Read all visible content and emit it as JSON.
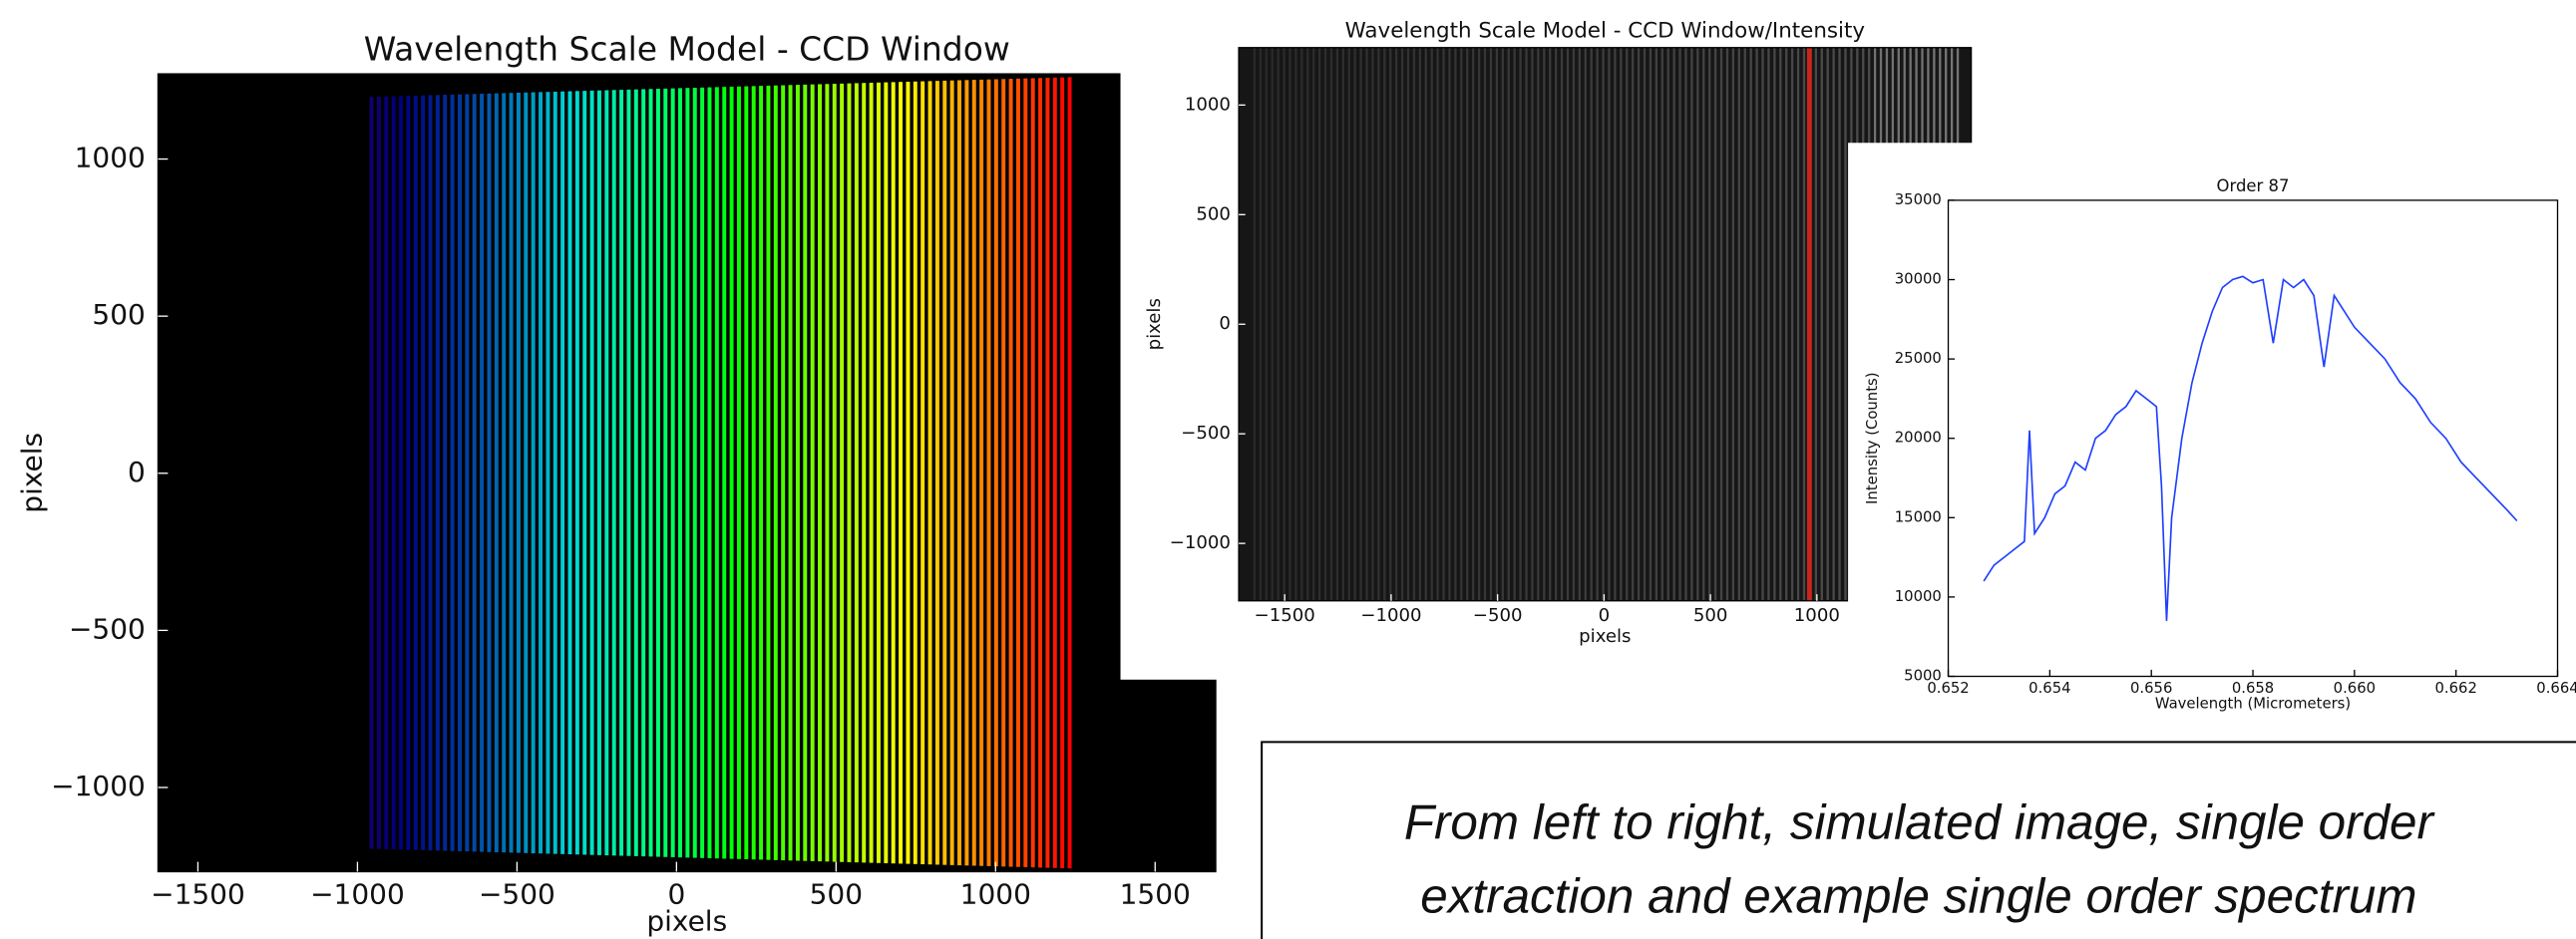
{
  "chart_data": [
    {
      "type": "image",
      "title": "Wavelength Scale Model - CCD Window",
      "x_label": "pixels",
      "y_label": "pixels",
      "colormap": "rainbow",
      "background": "#000000",
      "xlim": [
        -1625,
        1690
      ],
      "ylim": [
        -1268,
        1271
      ],
      "xticks": [
        {
          "value": -1500,
          "label": "−1500"
        },
        {
          "value": -1000,
          "label": "−1000"
        },
        {
          "value": -500,
          "label": "−500"
        },
        0,
        500,
        1000,
        1500
      ],
      "yticks": [
        {
          "value": -1000,
          "label": "−1000"
        },
        {
          "value": -500,
          "label": "−500"
        },
        0,
        500,
        1000
      ]
    },
    {
      "type": "image",
      "title": "Wavelength Scale Model - CCD Window/Intensity",
      "x_label": "pixels",
      "y_label": "pixels",
      "colormap": "gray",
      "background": "#161616",
      "highlight": {
        "x": 965,
        "color": "#c8261c"
      },
      "xlim": [
        -1716,
        1725
      ],
      "ylim": [
        -1262,
        1262
      ],
      "xticks": [
        {
          "value": -1500,
          "label": "−1500"
        },
        {
          "value": -1000,
          "label": "−1000"
        },
        {
          "value": -500,
          "label": "−500"
        },
        0,
        500,
        1000
      ],
      "yticks": [
        {
          "value": -1000,
          "label": "−1000"
        },
        {
          "value": -500,
          "label": "−500"
        },
        0,
        500,
        1000
      ]
    },
    {
      "type": "line",
      "title": "Order 87",
      "x_label": "Wavelength (Micrometers)",
      "y_label": "Intensity (Counts)",
      "xlim": [
        0.652,
        0.664
      ],
      "ylim": [
        5000,
        35000
      ],
      "xticks": [
        0.652,
        0.654,
        0.656,
        0.658,
        {
          "value": 0.66,
          "label": "0.660"
        },
        0.662,
        0.664
      ],
      "yticks": [
        5000,
        10000,
        15000,
        20000,
        25000,
        30000,
        35000
      ],
      "x": [
        0.6527,
        0.6529,
        0.6531,
        0.6533,
        0.6535,
        0.6536,
        0.6537,
        0.6539,
        0.6541,
        0.6543,
        0.6545,
        0.6547,
        0.6549,
        0.6551,
        0.6553,
        0.6555,
        0.6557,
        0.6559,
        0.6561,
        0.6562,
        0.6563,
        0.6564,
        0.6566,
        0.6568,
        0.657,
        0.6572,
        0.6574,
        0.6576,
        0.6578,
        0.658,
        0.6582,
        0.6584,
        0.6586,
        0.6588,
        0.659,
        0.6592,
        0.6594,
        0.6596,
        0.6598,
        0.66,
        0.6603,
        0.6606,
        0.6609,
        0.6612,
        0.6615,
        0.6618,
        0.6621,
        0.6624,
        0.6627,
        0.663,
        0.6632
      ],
      "series": [
        {
          "color": "#1f3fff",
          "values": [
            11000,
            12000,
            12500,
            13000,
            13500,
            20500,
            14000,
            15000,
            16500,
            17000,
            18500,
            18000,
            20000,
            20500,
            21500,
            22000,
            23000,
            22500,
            22000,
            17000,
            8500,
            15000,
            20000,
            23500,
            26000,
            28000,
            29500,
            30000,
            30200,
            29800,
            30000,
            26000,
            30000,
            29500,
            30000,
            29000,
            24500,
            29000,
            28000,
            27000,
            26000,
            25000,
            23500,
            22500,
            21000,
            20000,
            18500,
            17500,
            16500,
            15500,
            14800
          ]
        }
      ]
    }
  ],
  "caption": {
    "lines": [
      "From left to right, simulated image, single order",
      "extraction and example single order spectrum"
    ]
  }
}
